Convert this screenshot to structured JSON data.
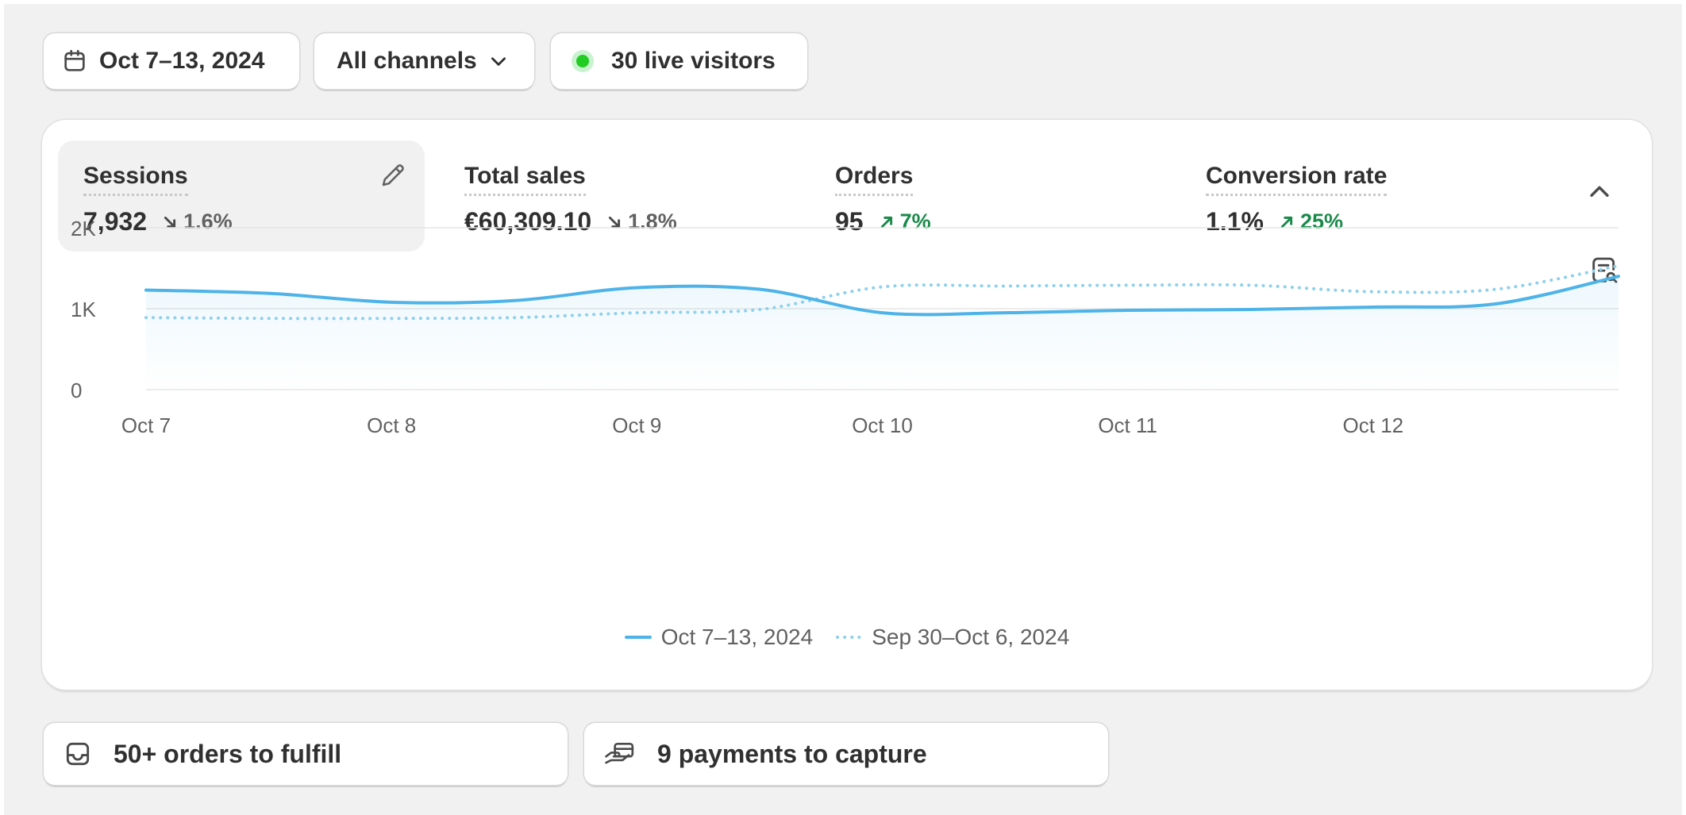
{
  "filters": {
    "date_range": "Oct 7–13, 2024",
    "channels": "All channels",
    "live_visitors": "30 live visitors"
  },
  "metrics": [
    {
      "title": "Sessions",
      "value": "7,932",
      "change": "1.6%",
      "direction": "down",
      "selected": true
    },
    {
      "title": "Total sales",
      "value": "€60,309.10",
      "change": "1.8%",
      "direction": "down",
      "selected": false
    },
    {
      "title": "Orders",
      "value": "95",
      "change": "7%",
      "direction": "up",
      "selected": false
    },
    {
      "title": "Conversion rate",
      "value": "1.1%",
      "change": "25%",
      "direction": "up",
      "selected": false
    }
  ],
  "chart_data": {
    "type": "line",
    "title": "Sessions",
    "x": [
      "Oct 7",
      "Oct 7.5",
      "Oct 8",
      "Oct 8.5",
      "Oct 9",
      "Oct 9.5",
      "Oct 10",
      "Oct 10.5",
      "Oct 11",
      "Oct 11.5",
      "Oct 12",
      "Oct 12.5",
      "Oct 13"
    ],
    "x_numeric": [
      0,
      0.5,
      1,
      1.5,
      2,
      2.5,
      3,
      3.5,
      4,
      4.5,
      5,
      5.5,
      6
    ],
    "tick_labels": [
      "Oct 7",
      "Oct 8",
      "Oct 9",
      "Oct 10",
      "Oct 11",
      "Oct 12"
    ],
    "y_ticks": [
      0,
      1000,
      2000
    ],
    "y_tick_labels": [
      "0",
      "1K",
      "2K"
    ],
    "ylim": [
      0,
      2000
    ],
    "xlim": [
      0,
      6
    ],
    "grid": true,
    "series": [
      {
        "name": "Oct 7–13, 2024",
        "style": "solid",
        "color": "#4db3e8",
        "values": [
          1230,
          1190,
          1080,
          1100,
          1260,
          1240,
          950,
          950,
          980,
          990,
          1020,
          1060,
          1400
        ]
      },
      {
        "name": "Sep 30–Oct 6, 2024",
        "style": "dotted",
        "color": "#8fd0eb",
        "values": [
          890,
          880,
          880,
          890,
          950,
          990,
          1270,
          1280,
          1290,
          1290,
          1210,
          1240,
          1530
        ]
      }
    ],
    "legend_position": "bottom"
  },
  "tasks": {
    "fulfill": "50+ orders to fulfill",
    "capture": "9 payments to capture"
  },
  "icons": {
    "calendar": "calendar-icon",
    "chevron": "chevron-down-icon",
    "live": "live-dot-icon",
    "edit": "pencil-icon",
    "collapse": "chevron-up-icon",
    "explore": "report-search-icon",
    "inbox": "inbox-icon",
    "payment": "hand-card-icon"
  },
  "colors": {
    "up": "#1a8a4a",
    "down": "#616161",
    "primary_line": "#4db3e8",
    "comparison_line": "#8fd0eb",
    "live": "#22cc22"
  }
}
